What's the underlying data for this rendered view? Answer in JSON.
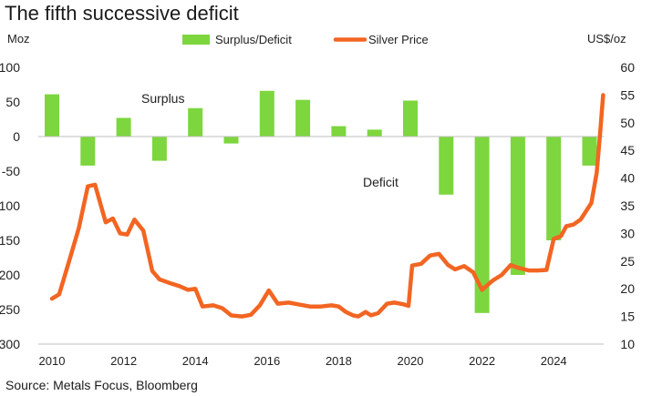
{
  "title": "The fifth successive deficit",
  "source": "Source: Metals Focus, Bloomberg",
  "chart_data": {
    "type": "bar+line",
    "y_left_label": "Moz",
    "y_right_label": "US$/oz",
    "y_left_range": [
      -300,
      100
    ],
    "y_right_range": [
      10,
      60
    ],
    "y_left_ticks": [
      100,
      50,
      0,
      -50,
      -100,
      -150,
      -200,
      -250,
      -300
    ],
    "y_right_ticks": [
      60,
      55,
      50,
      45,
      40,
      35,
      30,
      25,
      20,
      15,
      10
    ],
    "x_tick_labels": [
      "2010",
      "2012",
      "2014",
      "2016",
      "2018",
      "2020",
      "2022",
      "2024"
    ],
    "annotations": {
      "surplus": "Surplus",
      "deficit": "Deficit"
    },
    "legend_position": "top",
    "bar_series": {
      "name": "Surplus/Deficit",
      "color": "#7dd63d",
      "years": [
        2010,
        2011,
        2012,
        2013,
        2014,
        2015,
        2016,
        2017,
        2018,
        2019,
        2020,
        2021,
        2022,
        2023,
        2024,
        2025
      ],
      "values": [
        61,
        -42,
        27,
        -35,
        41,
        -10,
        66,
        53,
        15,
        10,
        52,
        -84,
        -255,
        -200,
        -150,
        -42
      ]
    },
    "line_series": {
      "name": "Silver Price",
      "color": "#f26522",
      "points": [
        [
          2010.0,
          18.2
        ],
        [
          2010.2,
          19.0
        ],
        [
          2010.5,
          25.5
        ],
        [
          2010.75,
          31.0
        ],
        [
          2011.0,
          38.5
        ],
        [
          2011.2,
          38.8
        ],
        [
          2011.5,
          32.0
        ],
        [
          2011.7,
          32.7
        ],
        [
          2011.9,
          30.0
        ],
        [
          2012.1,
          29.8
        ],
        [
          2012.3,
          32.5
        ],
        [
          2012.55,
          30.5
        ],
        [
          2012.8,
          23.2
        ],
        [
          2013.0,
          21.7
        ],
        [
          2013.3,
          21.0
        ],
        [
          2013.55,
          20.5
        ],
        [
          2013.8,
          19.8
        ],
        [
          2014.0,
          20.0
        ],
        [
          2014.2,
          16.8
        ],
        [
          2014.5,
          17.0
        ],
        [
          2014.75,
          16.5
        ],
        [
          2015.0,
          15.2
        ],
        [
          2015.3,
          15.0
        ],
        [
          2015.55,
          15.3
        ],
        [
          2015.8,
          17.0
        ],
        [
          2016.05,
          19.7
        ],
        [
          2016.3,
          17.3
        ],
        [
          2016.6,
          17.5
        ],
        [
          2016.85,
          17.2
        ],
        [
          2017.2,
          16.8
        ],
        [
          2017.5,
          16.8
        ],
        [
          2017.8,
          17.0
        ],
        [
          2018.0,
          16.8
        ],
        [
          2018.2,
          15.8
        ],
        [
          2018.4,
          15.2
        ],
        [
          2018.55,
          15.0
        ],
        [
          2018.75,
          15.8
        ],
        [
          2018.9,
          15.2
        ],
        [
          2019.1,
          15.6
        ],
        [
          2019.35,
          17.3
        ],
        [
          2019.55,
          17.5
        ],
        [
          2019.8,
          17.2
        ],
        [
          2019.95,
          16.9
        ],
        [
          2020.05,
          24.2
        ],
        [
          2020.3,
          24.5
        ],
        [
          2020.55,
          26.0
        ],
        [
          2020.8,
          26.3
        ],
        [
          2021.05,
          24.3
        ],
        [
          2021.25,
          23.5
        ],
        [
          2021.5,
          24.1
        ],
        [
          2021.75,
          23.0
        ],
        [
          2022.0,
          19.8
        ],
        [
          2022.3,
          21.5
        ],
        [
          2022.55,
          22.5
        ],
        [
          2022.8,
          24.3
        ],
        [
          2023.0,
          23.8
        ],
        [
          2023.3,
          23.3
        ],
        [
          2023.55,
          23.3
        ],
        [
          2023.8,
          23.4
        ],
        [
          2024.0,
          29.0
        ],
        [
          2024.2,
          29.5
        ],
        [
          2024.35,
          31.3
        ],
        [
          2024.55,
          31.6
        ],
        [
          2024.75,
          32.5
        ],
        [
          2024.9,
          34.0
        ],
        [
          2025.05,
          35.5
        ],
        [
          2025.2,
          41.0
        ],
        [
          2025.3,
          48.5
        ],
        [
          2025.38,
          55.0
        ]
      ]
    }
  }
}
